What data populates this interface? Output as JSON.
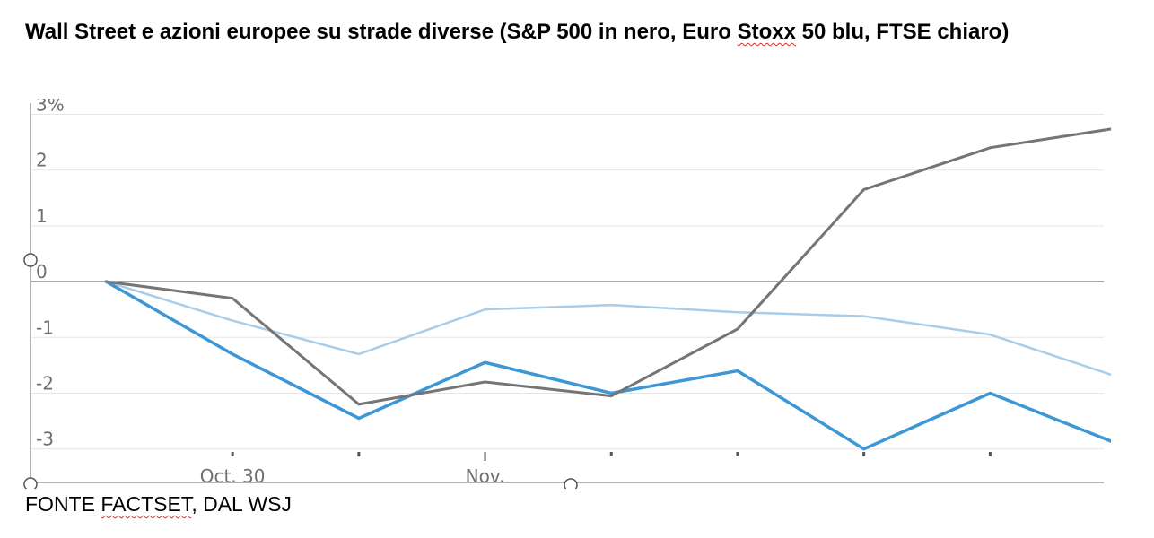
{
  "title": {
    "before": "Wall Street e azioni europee su strade diverse (S&P 500 in nero, Euro ",
    "marked": "Stoxx",
    "after": " 50 blu, FTSE chiaro)"
  },
  "source": {
    "before": "FONTE ",
    "marked": "FACTSET",
    "after": ", DAL WSJ"
  },
  "colors": {
    "sp500": "#757575",
    "eurostoxx": "#3d97d6",
    "ftse": "#a9cde9",
    "grid": "#e6e6e6",
    "zero": "#8c8c8c",
    "squiggle": "#d93025"
  },
  "chart_data": {
    "type": "line",
    "x": [
      0,
      1,
      2,
      3,
      4,
      5,
      6,
      7,
      8
    ],
    "x_tick_labels": [
      {
        "x": 1,
        "label": "Oct. 30"
      },
      {
        "x": 3,
        "label": "Nov."
      }
    ],
    "y_tick_labels": [
      "3%",
      "2",
      "1",
      "0",
      "-1",
      "-2",
      "-3"
    ],
    "y_ticks": [
      3,
      2,
      1,
      0,
      -1,
      -2,
      -3
    ],
    "ylim": [
      -3.6,
      3.2
    ],
    "xlim": [
      -0.6,
      7.9
    ],
    "grid": true,
    "series": [
      {
        "key": "sp500",
        "values": [
          0,
          -0.3,
          -2.2,
          -1.8,
          -2.05,
          -0.85,
          1.65,
          2.4,
          2.75
        ]
      },
      {
        "key": "eurostoxx",
        "values": [
          0,
          -1.3,
          -2.45,
          -1.45,
          -2.0,
          -1.6,
          -3.0,
          -2.0,
          -2.9
        ]
      },
      {
        "key": "ftse",
        "values": [
          0,
          -0.7,
          -1.3,
          -0.5,
          -0.42,
          -0.55,
          -0.62,
          -0.95,
          -1.7
        ]
      }
    ]
  }
}
